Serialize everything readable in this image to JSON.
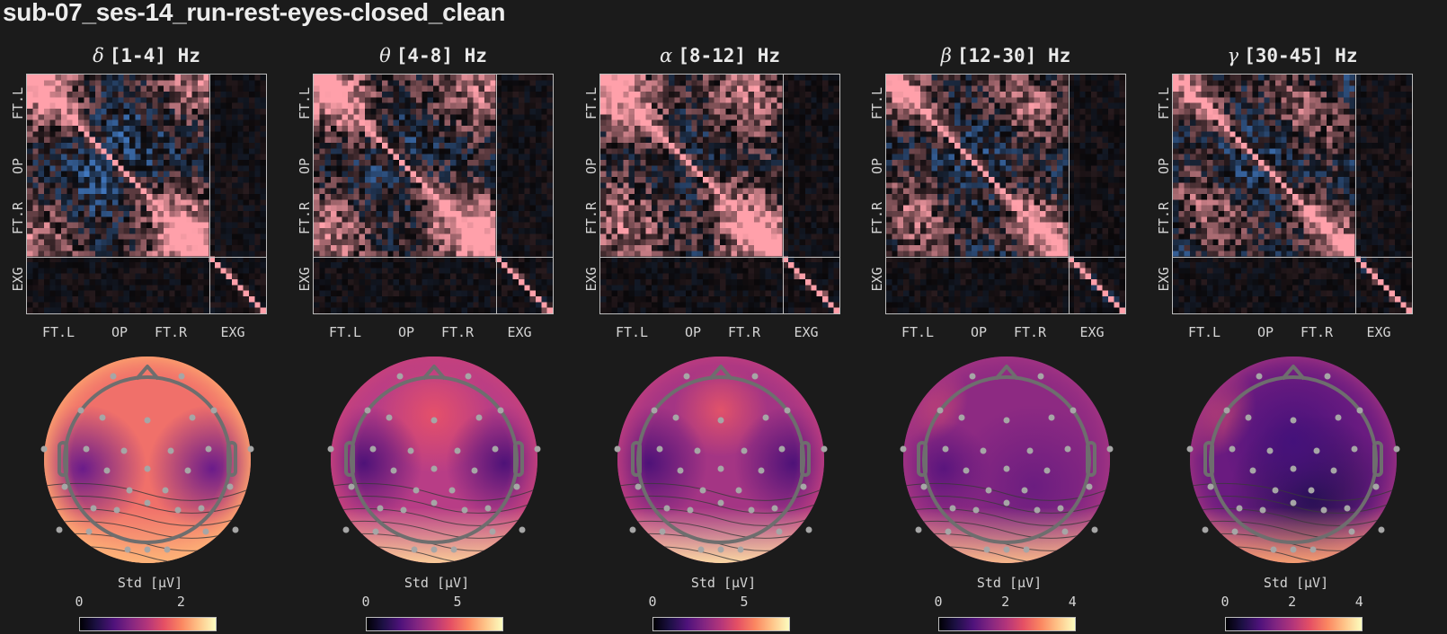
{
  "figure": {
    "title": "sub-07_ses-14_run-rest-eyes-closed_clean"
  },
  "colors": {
    "background": "#1b1b1b",
    "matrix_positive": "#ff9aa2",
    "matrix_negative": "#4b8fe8",
    "matrix_zero": "#0a0a0a",
    "sensor_dot": "#a6a6a6",
    "head_outline": "#6e6e6e",
    "contour": "#3a3a3a",
    "colormap": "magma"
  },
  "chart_data": [
    {
      "type": "heatmap",
      "title": "δ [1-4] Hz",
      "greek": "δ",
      "range": "[1-4] Hz",
      "xticks": [
        "FT.L",
        "OP",
        "FT.R",
        "EXG"
      ],
      "yticks": [
        "FT.L",
        "OP",
        "FT.R",
        "EXG"
      ],
      "groups": {
        "EEG_channels": 32,
        "EXG_channels": 10
      },
      "description": "channel correlation matrix; checkered positive/negative EEG block, near-zero EEG-EXG cross terms, EXG diagonal",
      "topomap": {
        "label": "Std [μV]",
        "ticks": [
          "0",
          "2"
        ],
        "cbar_max": 2.7,
        "pattern": "delta"
      }
    },
    {
      "type": "heatmap",
      "title": "θ [4-8] Hz",
      "greek": "θ",
      "range": "[4-8] Hz",
      "xticks": [
        "FT.L",
        "OP",
        "FT.R",
        "EXG"
      ],
      "yticks": [
        "FT.L",
        "OP",
        "FT.R",
        "EXG"
      ],
      "groups": {
        "EEG_channels": 32,
        "EXG_channels": 10
      },
      "topomap": {
        "label": "Std [μV]",
        "ticks": [
          "0",
          "5"
        ],
        "cbar_max": 7.5,
        "pattern": "theta"
      }
    },
    {
      "type": "heatmap",
      "title": "α [8-12] Hz",
      "greek": "α",
      "range": "[8-12] Hz",
      "xticks": [
        "FT.L",
        "OP",
        "FT.R",
        "EXG"
      ],
      "yticks": [
        "FT.L",
        "OP",
        "FT.R",
        "EXG"
      ],
      "groups": {
        "EEG_channels": 32,
        "EXG_channels": 10
      },
      "topomap": {
        "label": "Std [μV]",
        "ticks": [
          "0",
          "5"
        ],
        "cbar_max": 7.5,
        "pattern": "alpha"
      }
    },
    {
      "type": "heatmap",
      "title": "β [12-30] Hz",
      "greek": "β",
      "range": "[12-30] Hz",
      "xticks": [
        "FT.L",
        "OP",
        "FT.R",
        "EXG"
      ],
      "yticks": [
        "FT.L",
        "OP",
        "FT.R",
        "EXG"
      ],
      "groups": {
        "EEG_channels": 32,
        "EXG_channels": 10
      },
      "topomap": {
        "label": "Std [μV]",
        "ticks": [
          "0",
          "2",
          "4"
        ],
        "cbar_max": 4.1,
        "pattern": "beta"
      }
    },
    {
      "type": "heatmap",
      "title": "γ [30-45] Hz",
      "greek": "γ",
      "range": "[30-45] Hz",
      "xticks": [
        "FT.L",
        "OP",
        "FT.R",
        "EXG"
      ],
      "yticks": [
        "FT.L",
        "OP",
        "FT.R",
        "EXG"
      ],
      "groups": {
        "EEG_channels": 32,
        "EXG_channels": 10
      },
      "topomap": {
        "label": "Std [μV]",
        "ticks": [
          "0",
          "2",
          "4"
        ],
        "cbar_max": 4.1,
        "pattern": "gamma"
      }
    }
  ]
}
